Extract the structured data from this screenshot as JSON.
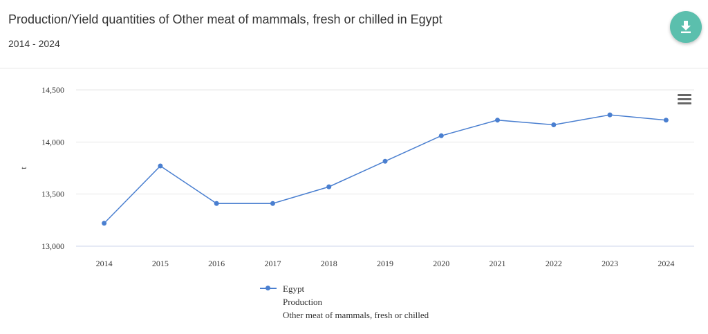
{
  "header": {
    "title": "Production/Yield quantities of Other meat of mammals, fresh or chilled in Egypt",
    "subtitle": "2014 - 2024"
  },
  "toolbar": {
    "download_icon": "download-icon",
    "menu_icon": "hamburger-menu-icon"
  },
  "colors": {
    "accent": "#5bbfad",
    "series": "#4a7fd0",
    "grid": "#e6e6e6"
  },
  "legend": {
    "line1": "Egypt",
    "line2": "Production",
    "line3": "Other meat of mammals, fresh or chilled"
  },
  "chart_data": {
    "type": "line",
    "title": "Production/Yield quantities of Other meat of mammals, fresh or chilled in Egypt",
    "subtitle": "2014 - 2024",
    "xlabel": "",
    "ylabel": "t",
    "categories": [
      "2014",
      "2015",
      "2016",
      "2017",
      "2018",
      "2019",
      "2020",
      "2021",
      "2022",
      "2023",
      "2024"
    ],
    "ylim": [
      13000,
      14500
    ],
    "yticks": [
      13000,
      13500,
      14000,
      14500
    ],
    "ytick_labels": [
      "13,000",
      "13,500",
      "14,000",
      "14,500"
    ],
    "grid": true,
    "legend_position": "bottom",
    "series": [
      {
        "name": "Egypt",
        "values": [
          13220,
          13770,
          13410,
          13410,
          13570,
          13815,
          14060,
          14210,
          14165,
          14260,
          14210
        ]
      }
    ]
  }
}
